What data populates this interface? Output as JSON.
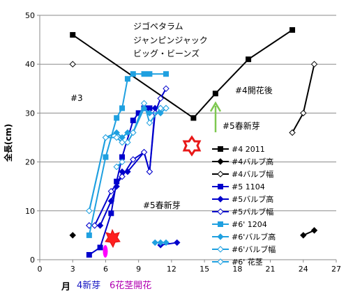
{
  "chart_data": {
    "type": "line",
    "ylabel": "全長(cm)",
    "xlim": [
      0,
      27
    ],
    "ylim": [
      0,
      50
    ],
    "x_ticks": [
      0,
      3,
      6,
      9,
      12,
      15,
      18,
      21,
      24,
      27
    ],
    "y_ticks": [
      0,
      10,
      20,
      30,
      40,
      50
    ],
    "grid": "horizontal",
    "legend_position": "right",
    "series": [
      {
        "name": "#4 2011",
        "color": "#000000",
        "marker": "square",
        "filled": true,
        "points": [
          [
            3,
            46
          ],
          [
            14,
            29
          ],
          [
            16,
            34
          ],
          [
            19,
            41
          ],
          [
            23,
            47
          ]
        ]
      },
      {
        "name": "#4バルブ高",
        "color": "#000000",
        "marker": "diamond",
        "filled": true,
        "segments": [
          [
            [
              3,
              5
            ]
          ],
          [
            [
              24,
              5
            ],
            [
              25,
              6
            ]
          ]
        ]
      },
      {
        "name": "#4バルブ幅",
        "color": "#000000",
        "marker": "diamond",
        "filled": false,
        "segments": [
          [
            [
              3,
              40
            ]
          ],
          [
            [
              23,
              26
            ],
            [
              24,
              30
            ],
            [
              25,
              40
            ]
          ]
        ]
      },
      {
        "name": "#5 1104",
        "color": "#0000cc",
        "marker": "square",
        "filled": true,
        "points": [
          [
            4.5,
            1
          ],
          [
            5.5,
            2.5
          ],
          [
            6.5,
            9.5
          ],
          [
            7,
            16
          ],
          [
            7.5,
            21
          ],
          [
            8.5,
            28.5
          ],
          [
            9,
            30
          ],
          [
            9.5,
            31
          ],
          [
            10,
            31
          ]
        ]
      },
      {
        "name": "#5バルブ高",
        "color": "#0000cc",
        "marker": "diamond",
        "filled": true,
        "segments": [
          [
            [
              4.5,
              7
            ],
            [
              5.5,
              7
            ],
            [
              6.5,
              12
            ],
            [
              7,
              15
            ],
            [
              7.5,
              18
            ],
            [
              8,
              18
            ],
            [
              9.5,
              22
            ],
            [
              10,
              18
            ],
            [
              10.5,
              31
            ],
            [
              11,
              31
            ]
          ],
          [
            [
              11,
              3
            ],
            [
              12.5,
              3.5
            ]
          ]
        ]
      },
      {
        "name": "#5バルブ幅",
        "color": "#0000cc",
        "marker": "diamond",
        "filled": false,
        "points": [
          [
            4.5,
            7
          ],
          [
            5,
            7
          ],
          [
            6.5,
            14
          ],
          [
            7.5,
            17
          ],
          [
            8.5,
            20.5
          ],
          [
            9.5,
            22
          ],
          [
            10,
            18
          ],
          [
            10.5,
            30
          ],
          [
            11,
            33
          ],
          [
            11.5,
            35
          ]
        ]
      },
      {
        "name": "#6' 1204",
        "color": "#1fa0e0",
        "marker": "square",
        "filled": true,
        "points": [
          [
            4.5,
            5
          ],
          [
            6,
            21
          ],
          [
            7,
            29
          ],
          [
            7.5,
            31
          ],
          [
            8,
            37
          ],
          [
            8.5,
            38
          ],
          [
            9.5,
            38
          ],
          [
            10,
            38
          ],
          [
            11.5,
            38
          ]
        ]
      },
      {
        "name": "#6'バルブ高",
        "color": "#1fa0e0",
        "marker": "diamond",
        "filled": true,
        "segments": [
          [
            [
              4.5,
              10
            ],
            [
              6,
              25
            ],
            [
              7,
              26
            ],
            [
              7.5,
              25
            ],
            [
              8,
              26
            ],
            [
              8.5,
              26
            ],
            [
              9.5,
              31
            ],
            [
              10,
              30
            ],
            [
              11,
              30
            ],
            [
              11.5,
              31
            ]
          ],
          [
            [
              10.5,
              3.5
            ],
            [
              11,
              3.5
            ],
            [
              11.5,
              3.5
            ]
          ]
        ]
      },
      {
        "name": "#6'バルブ幅",
        "color": "#1fa0e0",
        "marker": "diamond",
        "filled": false,
        "points": [
          [
            4.5,
            10
          ],
          [
            6,
            25
          ],
          [
            7,
            25
          ],
          [
            7.5,
            24
          ],
          [
            8,
            24
          ],
          [
            8.5,
            26
          ],
          [
            9.5,
            32
          ],
          [
            10,
            28
          ],
          [
            11,
            31
          ],
          [
            11.5,
            31
          ]
        ]
      },
      {
        "name": "#6' 花茎",
        "color": "#1fa0e0",
        "marker": "diamond",
        "filled": false,
        "points": [
          [
            7,
            19
          ],
          [
            7.5,
            20
          ]
        ]
      }
    ],
    "annotations": [
      {
        "id": "species",
        "lines": [
          "ジゴペタラム",
          "ジャンピンジャック",
          "ビッグ・ビーンズ"
        ]
      },
      {
        "id": "label3",
        "text": "#3"
      },
      {
        "id": "label4bloom",
        "text": "#4開花後"
      },
      {
        "id": "label5spring1",
        "text": "#5春新芽"
      },
      {
        "id": "label5spring2",
        "text": "#5春新芽"
      }
    ],
    "bottom_labels": {
      "month": "月",
      "new_shoot": "4新芽",
      "flower": "6花茎開花"
    }
  }
}
